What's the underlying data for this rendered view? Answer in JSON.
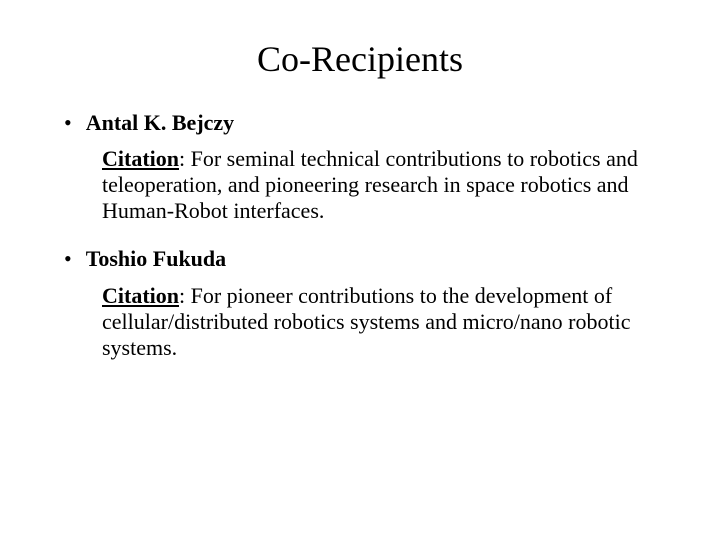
{
  "title": "Co-Recipients",
  "recipients": [
    {
      "name": "Antal K. Bejczy",
      "citation_label": "Citation",
      "citation_text": ": For seminal technical contributions to robotics and teleoperation, and pioneering research in space robotics and Human-Robot interfaces."
    },
    {
      "name": "Toshio Fukuda",
      "citation_label": "Citation",
      "citation_text": ": For pioneer contributions to the development of cellular/distributed robotics systems and micro/nano robotic systems."
    }
  ],
  "colors": {
    "background": "#ffffff",
    "text": "#000000"
  },
  "typography": {
    "font_family": "Times New Roman",
    "title_fontsize": 36,
    "body_fontsize": 22
  }
}
